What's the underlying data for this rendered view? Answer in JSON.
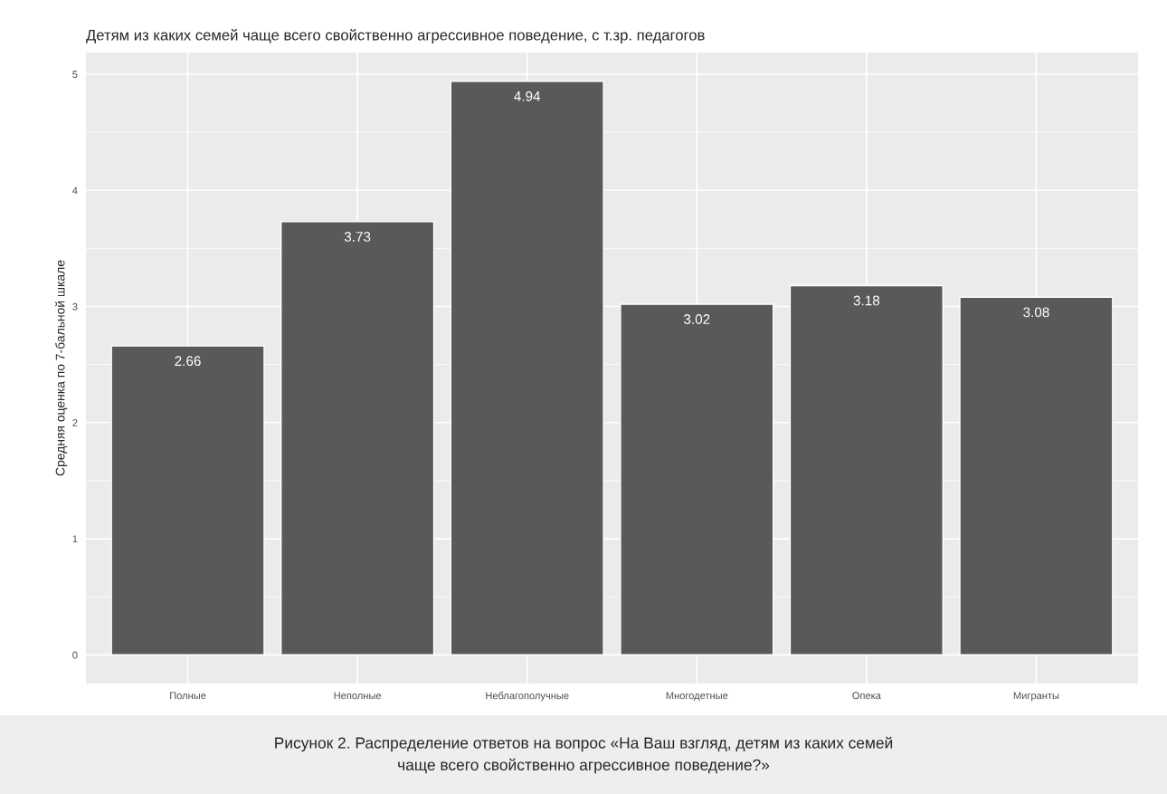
{
  "chart_data": {
    "type": "bar",
    "title": "Детям из каких семей чаще всего свойственно агрессивное поведение, с т.зр. педагогов",
    "ylabel": "Средняя оценка по 7-бальной шкале",
    "categories": [
      "Полные",
      "Неполные",
      "Неблагополучные",
      "Многодетные",
      "Опека",
      "Мигранты"
    ],
    "values": [
      2.66,
      3.73,
      4.94,
      3.02,
      3.18,
      3.08
    ],
    "color": "#595959",
    "ylim": [
      -0.247,
      5.187
    ],
    "yticks": [
      0,
      1,
      2,
      3,
      4,
      5
    ],
    "grid": true,
    "data_labels": true,
    "annotations": [
      "Рисунок 2. Распределение ответов на вопрос «На Ваш взгляд, детям из каких семей\nчаще всего свойственно агрессивное поведение?»"
    ]
  }
}
